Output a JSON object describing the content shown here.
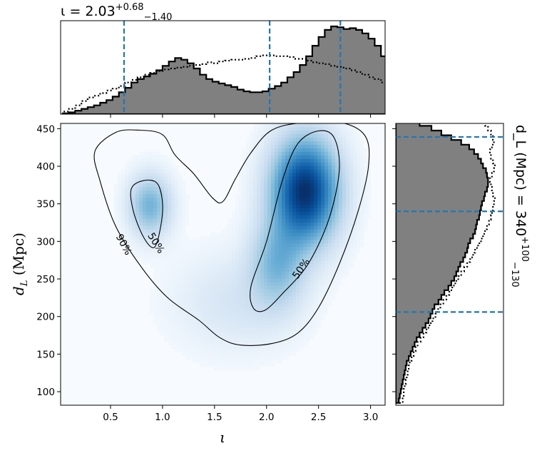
{
  "chart_data": [
    {
      "type": "heatmap",
      "xlabel": "ι",
      "ylabel": "d_L (Mpc)",
      "xlim": [
        0.02,
        3.14
      ],
      "ylim": [
        82,
        457
      ],
      "xticks": [
        0.5,
        1.0,
        1.5,
        2.0,
        2.5,
        3.0
      ],
      "xtick_labels": [
        "0.5",
        "1.0",
        "1.5",
        "2.0",
        "2.5",
        "3.0"
      ],
      "yticks": [
        100,
        150,
        200,
        250,
        300,
        350,
        400,
        450
      ],
      "ytick_labels": [
        "100",
        "150",
        "200",
        "250",
        "300",
        "350",
        "400",
        "450"
      ],
      "colormap": "Blues",
      "density_peaks": [
        {
          "x": 2.37,
          "y": 367,
          "weight": 1.0,
          "sx": 0.22,
          "sy": 48
        },
        {
          "x": 2.1,
          "y": 270,
          "weight": 0.35,
          "sx": 0.18,
          "sy": 40
        },
        {
          "x": 0.88,
          "y": 348,
          "weight": 0.42,
          "sx": 0.14,
          "sy": 28
        },
        {
          "x": 1.7,
          "y": 220,
          "weight": 0.12,
          "sx": 0.4,
          "sy": 45
        }
      ],
      "contours": [
        {
          "level": "90%",
          "points": [
            [
              0.35,
              420
            ],
            [
              0.55,
              445
            ],
            [
              0.78,
              448
            ],
            [
              1.0,
              442
            ],
            [
              1.12,
              415
            ],
            [
              1.3,
              390
            ],
            [
              1.48,
              358
            ],
            [
              1.58,
              353
            ],
            [
              1.7,
              383
            ],
            [
              1.85,
              418
            ],
            [
              2.05,
              448
            ],
            [
              2.35,
              458
            ],
            [
              2.72,
              458
            ],
            [
              2.95,
              440
            ],
            [
              2.98,
              400
            ],
            [
              2.88,
              340
            ],
            [
              2.7,
              270
            ],
            [
              2.5,
              212
            ],
            [
              2.3,
              178
            ],
            [
              2.05,
              164
            ],
            [
              1.75,
              162
            ],
            [
              1.55,
              172
            ],
            [
              1.35,
              195
            ],
            [
              1.05,
              225
            ],
            [
              0.8,
              265
            ],
            [
              0.55,
              320
            ],
            [
              0.4,
              380
            ],
            [
              0.35,
              420
            ]
          ]
        },
        {
          "level": "50%",
          "points": [
            [
              0.7,
              370
            ],
            [
              0.82,
              381
            ],
            [
              0.95,
              377
            ],
            [
              1.0,
              350
            ],
            [
              0.98,
              318
            ],
            [
              0.92,
              292
            ],
            [
              0.82,
              305
            ],
            [
              0.72,
              340
            ],
            [
              0.7,
              370
            ]
          ]
        },
        {
          "level": "50%",
          "points": [
            [
              1.85,
              240
            ],
            [
              2.0,
              300
            ],
            [
              2.15,
              380
            ],
            [
              2.3,
              430
            ],
            [
              2.5,
              447
            ],
            [
              2.65,
              438
            ],
            [
              2.7,
              395
            ],
            [
              2.6,
              330
            ],
            [
              2.4,
              270
            ],
            [
              2.15,
              230
            ],
            [
              1.98,
              208
            ],
            [
              1.87,
              212
            ],
            [
              1.85,
              240
            ]
          ]
        }
      ],
      "contour_labels": [
        {
          "text": "90%",
          "x": 0.63,
          "y": 296,
          "angle": 62
        },
        {
          "text": "50%",
          "x": 0.94,
          "y": 298,
          "angle": 58
        },
        {
          "text": "50%",
          "x": 2.33,
          "y": 264,
          "angle": -55
        }
      ]
    },
    {
      "type": "bar",
      "title": "ι = 2.03",
      "title_sup": "+0.68",
      "title_sub": "−1.40",
      "xlim": [
        0.02,
        3.14
      ],
      "median": 2.03,
      "interval": [
        0.63,
        2.71
      ],
      "bins_start": 0.04,
      "bin_width": 0.06,
      "series": [
        {
          "style": "filled",
          "values": [
            0.01,
            0.02,
            0.04,
            0.06,
            0.08,
            0.1,
            0.13,
            0.16,
            0.2,
            0.25,
            0.3,
            0.36,
            0.4,
            0.43,
            0.46,
            0.5,
            0.55,
            0.6,
            0.64,
            0.62,
            0.58,
            0.52,
            0.45,
            0.4,
            0.37,
            0.35,
            0.33,
            0.31,
            0.28,
            0.26,
            0.25,
            0.25,
            0.26,
            0.29,
            0.32,
            0.36,
            0.42,
            0.48,
            0.56,
            0.66,
            0.78,
            0.88,
            0.96,
            1.0,
            0.99,
            0.97,
            0.98,
            0.96,
            0.92,
            0.86,
            0.78,
            0.66,
            0.52,
            0.38,
            0.28,
            0.22,
            0.17,
            0.12,
            0.08,
            0.05,
            0.03,
            0.02
          ]
        },
        {
          "style": "dotted",
          "values": [
            0.03,
            0.06,
            0.1,
            0.15,
            0.19,
            0.21,
            0.24,
            0.27,
            0.29,
            0.32,
            0.36,
            0.39,
            0.42,
            0.45,
            0.47,
            0.49,
            0.51,
            0.52,
            0.53,
            0.54,
            0.55,
            0.56,
            0.57,
            0.59,
            0.58,
            0.6,
            0.61,
            0.62,
            0.62,
            0.63,
            0.64,
            0.66,
            0.67,
            0.67,
            0.66,
            0.66,
            0.65,
            0.63,
            0.63,
            0.61,
            0.59,
            0.58,
            0.57,
            0.55,
            0.54,
            0.52,
            0.5,
            0.48,
            0.45,
            0.42,
            0.4,
            0.36,
            0.32,
            0.28,
            0.24,
            0.19,
            0.15,
            0.11,
            0.08,
            0.05,
            0.03,
            0.02
          ]
        }
      ]
    },
    {
      "type": "bar",
      "orientation": "horizontal",
      "title": "d_L (Mpc) = 340",
      "title_sup": "+100",
      "title_sub": "−130",
      "ylim": [
        82,
        457
      ],
      "median": 340,
      "interval": [
        206,
        439
      ],
      "bins_start": 85,
      "bin_width": 6.25,
      "series": [
        {
          "style": "filled",
          "values": [
            0.03,
            0.04,
            0.05,
            0.06,
            0.07,
            0.08,
            0.09,
            0.1,
            0.11,
            0.13,
            0.15,
            0.17,
            0.19,
            0.21,
            0.24,
            0.27,
            0.3,
            0.33,
            0.35,
            0.37,
            0.39,
            0.43,
            0.46,
            0.49,
            0.53,
            0.56,
            0.59,
            0.61,
            0.63,
            0.65,
            0.68,
            0.7,
            0.72,
            0.73,
            0.75,
            0.78,
            0.8,
            0.81,
            0.82,
            0.84,
            0.85,
            0.86,
            0.87,
            0.89,
            0.9,
            0.92,
            0.93,
            0.93,
            0.92,
            0.91,
            0.88,
            0.86,
            0.83,
            0.79,
            0.74,
            0.66,
            0.56,
            0.46,
            0.36,
            0.24
          ]
        },
        {
          "style": "dotted",
          "values": [
            0.07,
            0.08,
            0.08,
            0.09,
            0.1,
            0.11,
            0.12,
            0.13,
            0.14,
            0.16,
            0.18,
            0.2,
            0.22,
            0.25,
            0.28,
            0.31,
            0.34,
            0.37,
            0.4,
            0.42,
            0.45,
            0.48,
            0.51,
            0.54,
            0.57,
            0.6,
            0.63,
            0.66,
            0.69,
            0.72,
            0.75,
            0.78,
            0.8,
            0.83,
            0.86,
            0.88,
            0.9,
            0.92,
            0.94,
            0.96,
            0.97,
            0.98,
            0.99,
            1.0,
            0.98,
            0.97,
            0.96,
            0.95,
            0.97,
            0.99,
            1.0,
            0.98,
            0.96,
            0.95,
            0.97,
            0.99,
            0.98,
            0.96,
            0.93,
            0.9
          ]
        }
      ]
    }
  ]
}
